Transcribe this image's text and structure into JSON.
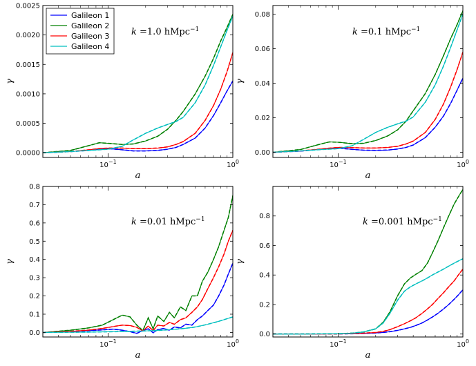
{
  "chart_data": [
    {
      "type": "line",
      "panel": "top-left",
      "annotation": {
        "var": "k",
        "eq": " =1.0 hMpc",
        "sup": "−1"
      },
      "xlabel": "a",
      "ylabel": "γ",
      "xscale": "log",
      "xlim": [
        0.03,
        1.0
      ],
      "ylim": [
        -8e-05,
        0.0025
      ],
      "yticks": [
        "0.0000",
        "0.0005",
        "0.0010",
        "0.0015",
        "0.0020",
        "0.0025"
      ],
      "ytick_values": [
        0,
        0.0005,
        0.001,
        0.0015,
        0.002,
        0.0025
      ],
      "xticks": [
        {
          "base": "10",
          "exp": "−1",
          "value": 0.1
        },
        {
          "base": "10",
          "exp": "0",
          "value": 1.0
        }
      ],
      "legend": {
        "position": "upper-left",
        "entries": [
          "Galileon 1",
          "Galileon 2",
          "Galileon 3",
          "Galileon 4"
        ]
      },
      "x": [
        0.03,
        0.05,
        0.07,
        0.085,
        0.1,
        0.13,
        0.16,
        0.2,
        0.25,
        0.3,
        0.35,
        0.4,
        0.5,
        0.6,
        0.7,
        0.8,
        0.9,
        1.0
      ],
      "series": [
        {
          "name": "Galileon 1",
          "color": "#0000ff",
          "values": [
            0.0,
            2e-05,
            4e-05,
            6e-05,
            7e-05,
            5e-05,
            3e-05,
            3e-05,
            4e-05,
            6e-05,
            9e-05,
            0.00014,
            0.00025,
            0.00042,
            0.00063,
            0.00085,
            0.00105,
            0.00122
          ]
        },
        {
          "name": "Galileon 2",
          "color": "#008000",
          "values": [
            0.0,
            4e-05,
            0.00012,
            0.00017,
            0.00016,
            0.00014,
            0.00015,
            0.0002,
            0.00028,
            0.0004,
            0.00055,
            0.0007,
            0.001,
            0.0013,
            0.0016,
            0.0019,
            0.00213,
            0.00235
          ]
        },
        {
          "name": "Galileon 3",
          "color": "#ff0000",
          "values": [
            0.0,
            2e-05,
            5e-05,
            7e-05,
            8e-05,
            8e-05,
            7e-05,
            7e-05,
            8e-05,
            0.0001,
            0.00014,
            0.00019,
            0.00033,
            0.00055,
            0.0008,
            0.00108,
            0.00138,
            0.0017
          ]
        },
        {
          "name": "Galileon 4",
          "color": "#00bfbf",
          "values": [
            0.0,
            2e-05,
            4e-05,
            5e-05,
            6e-05,
            0.00011,
            0.00022,
            0.00033,
            0.00042,
            0.00048,
            0.00053,
            0.0006,
            0.00085,
            0.00115,
            0.00148,
            0.0018,
            0.00208,
            0.00232
          ]
        }
      ]
    },
    {
      "type": "line",
      "panel": "top-right",
      "annotation": {
        "var": "k",
        "eq": " =0.1 hMpc",
        "sup": "−1"
      },
      "xlabel": "a",
      "ylabel": "γ",
      "xscale": "log",
      "xlim": [
        0.03,
        1.0
      ],
      "ylim": [
        -0.003,
        0.085
      ],
      "yticks": [
        "0.00",
        "0.02",
        "0.04",
        "0.06",
        "0.08"
      ],
      "ytick_values": [
        0,
        0.02,
        0.04,
        0.06,
        0.08
      ],
      "xticks": [
        {
          "base": "10",
          "exp": "−1",
          "value": 0.1
        },
        {
          "base": "10",
          "exp": "0",
          "value": 1.0
        }
      ],
      "x": [
        0.03,
        0.05,
        0.07,
        0.085,
        0.1,
        0.13,
        0.16,
        0.2,
        0.25,
        0.3,
        0.35,
        0.4,
        0.5,
        0.6,
        0.7,
        0.8,
        0.9,
        1.0
      ],
      "series": [
        {
          "name": "Galileon 1",
          "color": "#0000ff",
          "values": [
            0.0,
            0.0007,
            0.0016,
            0.0022,
            0.0024,
            0.0017,
            0.0012,
            0.0011,
            0.0013,
            0.0019,
            0.0028,
            0.0042,
            0.0085,
            0.0145,
            0.021,
            0.0285,
            0.036,
            0.043
          ]
        },
        {
          "name": "Galileon 2",
          "color": "#008000",
          "values": [
            0.0,
            0.0016,
            0.0045,
            0.006,
            0.0058,
            0.005,
            0.0052,
            0.0068,
            0.0095,
            0.013,
            0.018,
            0.024,
            0.034,
            0.045,
            0.056,
            0.066,
            0.074,
            0.082
          ]
        },
        {
          "name": "Galileon 3",
          "color": "#ff0000",
          "values": [
            0.0,
            0.0008,
            0.0018,
            0.0024,
            0.0028,
            0.0027,
            0.0025,
            0.0025,
            0.0028,
            0.0035,
            0.0048,
            0.0065,
            0.0115,
            0.019,
            0.028,
            0.038,
            0.048,
            0.058
          ]
        },
        {
          "name": "Galileon 4",
          "color": "#00bfbf",
          "values": [
            0.0,
            0.0008,
            0.0015,
            0.0018,
            0.0021,
            0.0038,
            0.0075,
            0.0115,
            0.0145,
            0.0165,
            0.018,
            0.0205,
            0.029,
            0.039,
            0.05,
            0.061,
            0.071,
            0.08
          ]
        }
      ]
    },
    {
      "type": "line",
      "panel": "bottom-left",
      "annotation": {
        "var": "k",
        "eq": " =0.01 hMpc",
        "sup": "−1"
      },
      "xlabel": "a",
      "ylabel": "γ",
      "xscale": "log",
      "xlim": [
        0.03,
        1.0
      ],
      "ylim": [
        -0.025,
        0.8
      ],
      "yticks": [
        "0.0",
        "0.1",
        "0.2",
        "0.3",
        "0.4",
        "0.5",
        "0.6",
        "0.7",
        "0.8"
      ],
      "ytick_values": [
        0,
        0.1,
        0.2,
        0.3,
        0.4,
        0.5,
        0.6,
        0.7,
        0.8
      ],
      "xticks": [
        {
          "base": "10",
          "exp": "−1",
          "value": 0.1
        },
        {
          "base": "10",
          "exp": "0",
          "value": 1.0
        }
      ],
      "x": [
        0.03,
        0.05,
        0.07,
        0.09,
        0.11,
        0.13,
        0.15,
        0.17,
        0.19,
        0.21,
        0.23,
        0.25,
        0.28,
        0.31,
        0.34,
        0.38,
        0.42,
        0.47,
        0.52,
        0.57,
        0.63,
        0.7,
        0.77,
        0.85,
        0.92,
        1.0
      ],
      "series": [
        {
          "name": "Galileon 1",
          "color": "#0000ff",
          "values": [
            0.0,
            0.005,
            0.01,
            0.014,
            0.018,
            0.012,
            0.004,
            -0.005,
            0.01,
            0.02,
            -0.002,
            0.015,
            0.022,
            0.012,
            0.03,
            0.025,
            0.045,
            0.04,
            0.07,
            0.09,
            0.12,
            0.15,
            0.2,
            0.26,
            0.32,
            0.38
          ]
        },
        {
          "name": "Galileon 2",
          "color": "#008000",
          "values": [
            0.0,
            0.012,
            0.025,
            0.04,
            0.07,
            0.095,
            0.085,
            0.04,
            0.01,
            0.08,
            0.02,
            0.09,
            0.06,
            0.11,
            0.08,
            0.14,
            0.12,
            0.2,
            0.2,
            0.28,
            0.33,
            0.4,
            0.47,
            0.56,
            0.63,
            0.75
          ]
        },
        {
          "name": "Galileon 3",
          "color": "#ff0000",
          "values": [
            0.0,
            0.006,
            0.013,
            0.022,
            0.032,
            0.04,
            0.038,
            0.028,
            0.008,
            0.035,
            0.01,
            0.04,
            0.035,
            0.055,
            0.045,
            0.07,
            0.08,
            0.11,
            0.14,
            0.18,
            0.24,
            0.3,
            0.36,
            0.43,
            0.5,
            0.56
          ]
        },
        {
          "name": "Galileon 4",
          "color": "#00bfbf",
          "values": [
            0.0,
            0.001,
            0.002,
            0.003,
            0.004,
            0.005,
            0.006,
            0.007,
            0.008,
            0.009,
            0.01,
            0.011,
            0.013,
            0.015,
            0.017,
            0.02,
            0.023,
            0.027,
            0.032,
            0.038,
            0.045,
            0.053,
            0.061,
            0.07,
            0.077,
            0.085
          ]
        }
      ]
    },
    {
      "type": "line",
      "panel": "bottom-right",
      "annotation": {
        "var": "k",
        "eq": " =0.001 hMpc",
        "sup": "−1"
      },
      "xlabel": "a",
      "ylabel": "γ",
      "xscale": "log",
      "xlim": [
        0.03,
        1.0
      ],
      "ylim": [
        -0.02,
        1.0
      ],
      "yticks": [
        "0.0",
        "0.2",
        "0.4",
        "0.6",
        "0.8"
      ],
      "ytick_values": [
        0,
        0.2,
        0.4,
        0.6,
        0.8
      ],
      "xticks": [
        {
          "base": "10",
          "exp": "−1",
          "value": 0.1
        },
        {
          "base": "10",
          "exp": "0",
          "value": 1.0
        }
      ],
      "x": [
        0.03,
        0.05,
        0.07,
        0.1,
        0.13,
        0.16,
        0.2,
        0.23,
        0.26,
        0.3,
        0.34,
        0.38,
        0.42,
        0.47,
        0.52,
        0.57,
        0.63,
        0.7,
        0.77,
        0.85,
        0.92,
        1.0
      ],
      "series": [
        {
          "name": "Galileon 1",
          "color": "#0000ff",
          "values": [
            0.0,
            0.0,
            0.0,
            0.001,
            0.002,
            0.004,
            0.007,
            0.011,
            0.016,
            0.025,
            0.035,
            0.045,
            0.058,
            0.075,
            0.095,
            0.115,
            0.14,
            0.17,
            0.2,
            0.235,
            0.265,
            0.3
          ]
        },
        {
          "name": "Galileon 2",
          "color": "#008000",
          "values": [
            0.0,
            0.0,
            0.001,
            0.002,
            0.006,
            0.014,
            0.035,
            0.08,
            0.15,
            0.26,
            0.34,
            0.38,
            0.405,
            0.43,
            0.48,
            0.55,
            0.63,
            0.72,
            0.8,
            0.88,
            0.93,
            0.98
          ]
        },
        {
          "name": "Galileon 3",
          "color": "#ff0000",
          "values": [
            0.0,
            0.0,
            0.0,
            0.001,
            0.003,
            0.006,
            0.011,
            0.018,
            0.03,
            0.05,
            0.07,
            0.09,
            0.11,
            0.14,
            0.17,
            0.2,
            0.24,
            0.28,
            0.32,
            0.36,
            0.4,
            0.44
          ]
        },
        {
          "name": "Galileon 4",
          "color": "#00bfbf",
          "values": [
            0.0,
            0.0,
            0.001,
            0.002,
            0.006,
            0.014,
            0.035,
            0.075,
            0.14,
            0.23,
            0.29,
            0.32,
            0.34,
            0.36,
            0.38,
            0.4,
            0.42,
            0.44,
            0.46,
            0.48,
            0.495,
            0.51
          ]
        }
      ]
    }
  ]
}
